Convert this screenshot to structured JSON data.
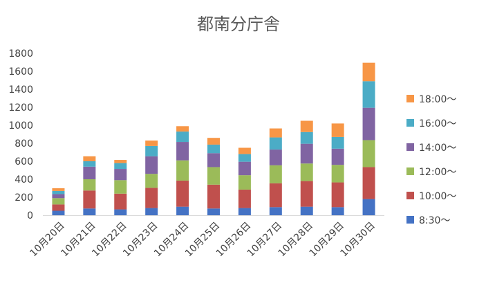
{
  "chart_data": {
    "type": "bar",
    "stacked": true,
    "title": "都南分庁舎",
    "xlabel": "",
    "ylabel": "",
    "ylim": [
      0,
      1800
    ],
    "yticks": [
      0,
      200,
      400,
      600,
      800,
      1000,
      1200,
      1400,
      1600,
      1800
    ],
    "grid": false,
    "legend_position": "right",
    "categories": [
      "10月20日",
      "10月21日",
      "10月22日",
      "10月23日",
      "10月24日",
      "10月25日",
      "10月26日",
      "10月27日",
      "10月28日",
      "10月29日",
      "10月30日"
    ],
    "series": [
      {
        "name": "8:30～",
        "color": "#4472C4",
        "values": [
          50,
          75,
          65,
          80,
          95,
          75,
          80,
          90,
          95,
          90,
          180
        ]
      },
      {
        "name": "10:00～",
        "color": "#C0504D",
        "values": [
          70,
          200,
          175,
          225,
          290,
          265,
          205,
          265,
          285,
          275,
          355
        ]
      },
      {
        "name": "12:00～",
        "color": "#9BBB59",
        "values": [
          70,
          125,
          150,
          155,
          225,
          195,
          160,
          200,
          195,
          195,
          300
        ]
      },
      {
        "name": "14:00～",
        "color": "#8064A2",
        "values": [
          45,
          140,
          125,
          195,
          205,
          155,
          150,
          175,
          220,
          180,
          360
        ]
      },
      {
        "name": "16:00～",
        "color": "#4BACC6",
        "values": [
          35,
          60,
          65,
          115,
          115,
          95,
          85,
          135,
          130,
          130,
          295
        ]
      },
      {
        "name": "18:00～",
        "color": "#F79646",
        "values": [
          30,
          55,
          35,
          60,
          60,
          75,
          70,
          100,
          125,
          150,
          205
        ]
      }
    ]
  }
}
